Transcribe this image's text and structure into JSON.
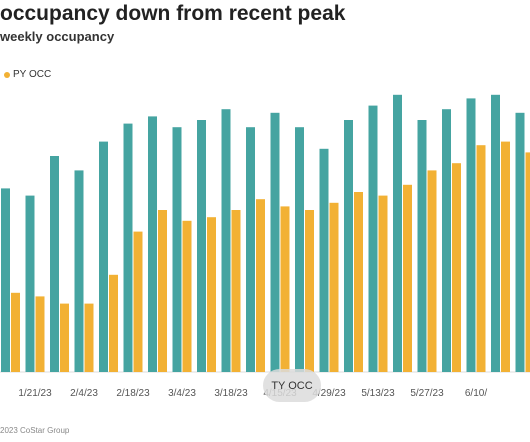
{
  "chart_data": {
    "type": "bar",
    "title": "occupancy down from recent peak",
    "subtitle": "weekly occupancy",
    "tick_labels": [
      "1/21/23",
      "2/4/23",
      "2/18/23",
      "3/4/23",
      "3/18/23",
      "4/15/23",
      "4/29/23",
      "5/13/23",
      "5/27/23",
      "6/10/"
    ],
    "series": [
      {
        "name": "TY OCC",
        "color": "#45a4a1",
        "values": [
          51,
          49,
          60,
          56,
          64,
          69,
          71,
          68,
          70,
          73,
          68,
          72,
          68,
          62,
          70,
          74,
          77,
          70,
          73,
          76,
          77,
          72,
          75
        ]
      },
      {
        "name": "PY OCC",
        "color": "#f2b134",
        "values": [
          22,
          21,
          19,
          19,
          27,
          39,
          45,
          42,
          43,
          45,
          48,
          46,
          45,
          47,
          50,
          49,
          52,
          56,
          58,
          63,
          64,
          61,
          63
        ]
      }
    ],
    "legend_position": "top-left",
    "grid": false
  },
  "tooltip": {
    "label": "TY OCC"
  },
  "credit": "2023 CoStar Group"
}
